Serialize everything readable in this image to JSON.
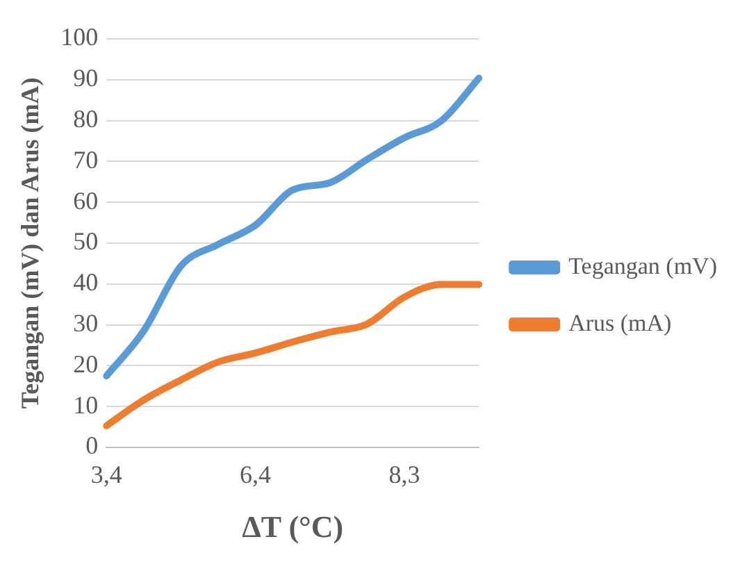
{
  "chart_data": {
    "type": "line",
    "xlabel": "ΔT (°C)",
    "ylabel": "Tegangan (mV) dan Arus (mA)",
    "categories": [
      "3,4",
      null,
      null,
      null,
      "6,4",
      null,
      null,
      null,
      "8,3",
      null,
      null
    ],
    "series": [
      {
        "name": "Tegangan (mV)",
        "color": "#5b9bd5",
        "values": [
          17.5,
          28.5,
          44.4,
          49.7,
          54.4,
          63,
          64.8,
          70.5,
          75.8,
          80,
          90.4
        ]
      },
      {
        "name": "Arus (mA)",
        "color": "#ed7d31",
        "values": [
          5.3,
          11.6,
          16.5,
          20.9,
          23.1,
          25.8,
          28.2,
          30.2,
          36.8,
          39.9,
          39.9
        ]
      }
    ],
    "ylim": [
      0,
      100
    ],
    "yticks": [
      0,
      10,
      20,
      30,
      40,
      50,
      60,
      70,
      80,
      90,
      100
    ],
    "grid": "y",
    "legend": "right",
    "marker": "none",
    "line_style": "solid"
  }
}
